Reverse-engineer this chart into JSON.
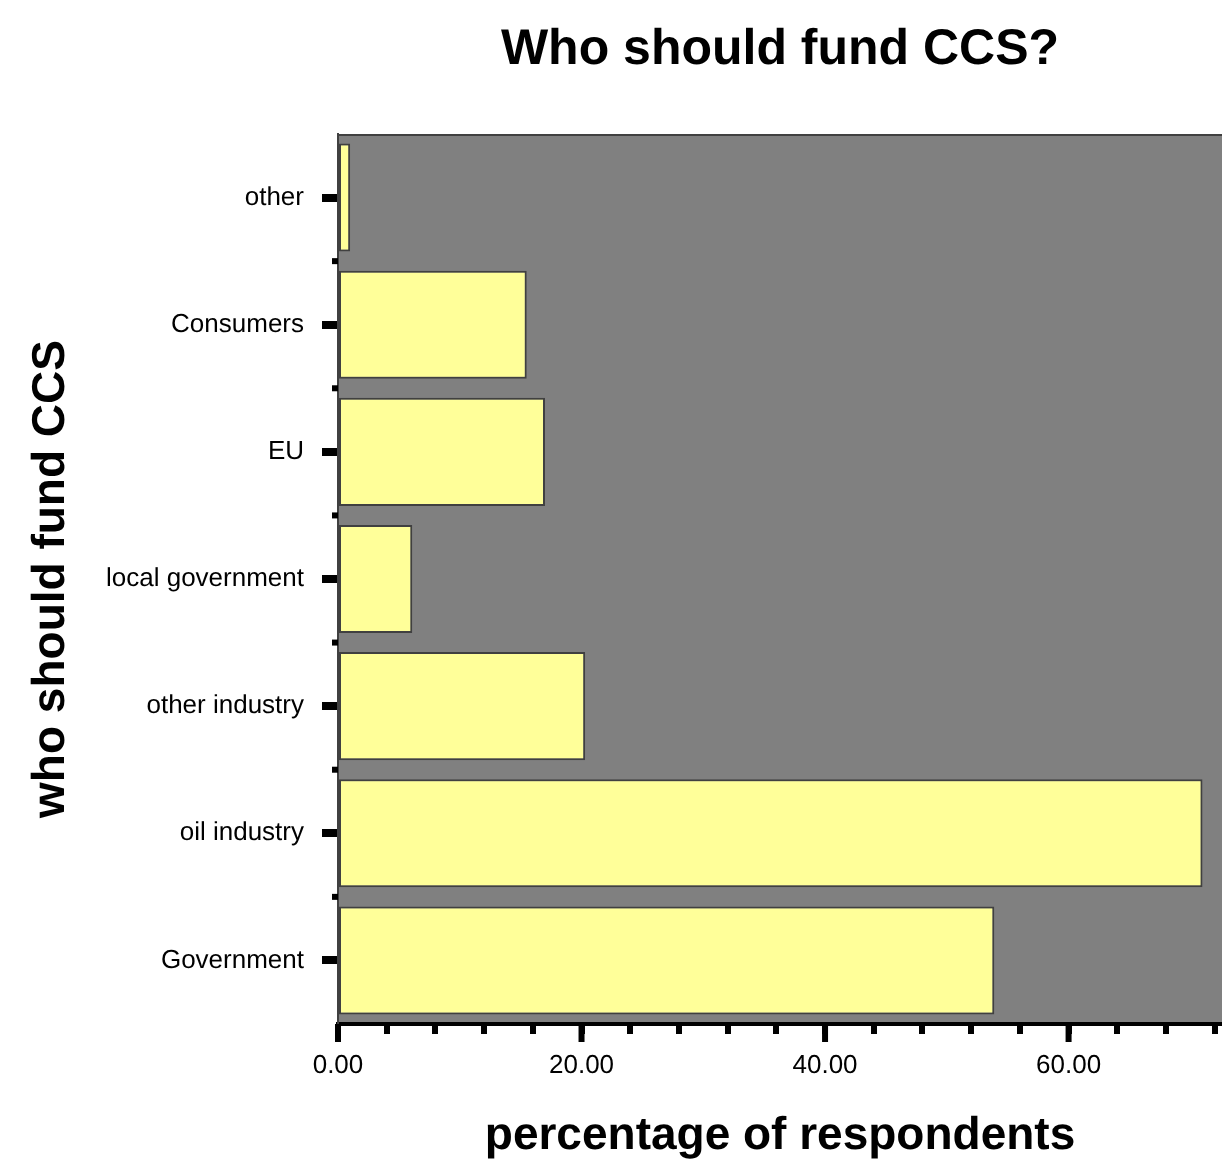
{
  "chart_data": {
    "type": "bar",
    "orientation": "horizontal",
    "title": "Who should fund CCS?",
    "xlabel": "percentage of respondents",
    "ylabel": "who should fund CCS",
    "categories": [
      "other",
      "Consumers",
      "EU",
      "local government",
      "other industry",
      "oil industry",
      "Government"
    ],
    "values": [
      1.0,
      15.5,
      17.0,
      6.1,
      20.3,
      71.0,
      53.9
    ],
    "color": "#ffff99",
    "xlim": [
      0,
      72.6
    ],
    "xticks": [
      {
        "value": 0,
        "label": "0.00"
      },
      {
        "value": 4,
        "label": null
      },
      {
        "value": 8,
        "label": null
      },
      {
        "value": 12,
        "label": null
      },
      {
        "value": 16,
        "label": null
      },
      {
        "value": 20,
        "label": "20.00"
      },
      {
        "value": 24,
        "label": null
      },
      {
        "value": 28,
        "label": null
      },
      {
        "value": 32,
        "label": null
      },
      {
        "value": 36,
        "label": null
      },
      {
        "value": 40,
        "label": "40.00"
      },
      {
        "value": 44,
        "label": null
      },
      {
        "value": 48,
        "label": null
      },
      {
        "value": 52,
        "label": null
      },
      {
        "value": 56,
        "label": null
      },
      {
        "value": 60,
        "label": "60.00"
      },
      {
        "value": 64,
        "label": null
      },
      {
        "value": 68,
        "label": null
      },
      {
        "value": 72,
        "label": null
      }
    ],
    "grid": false,
    "legend": false
  }
}
